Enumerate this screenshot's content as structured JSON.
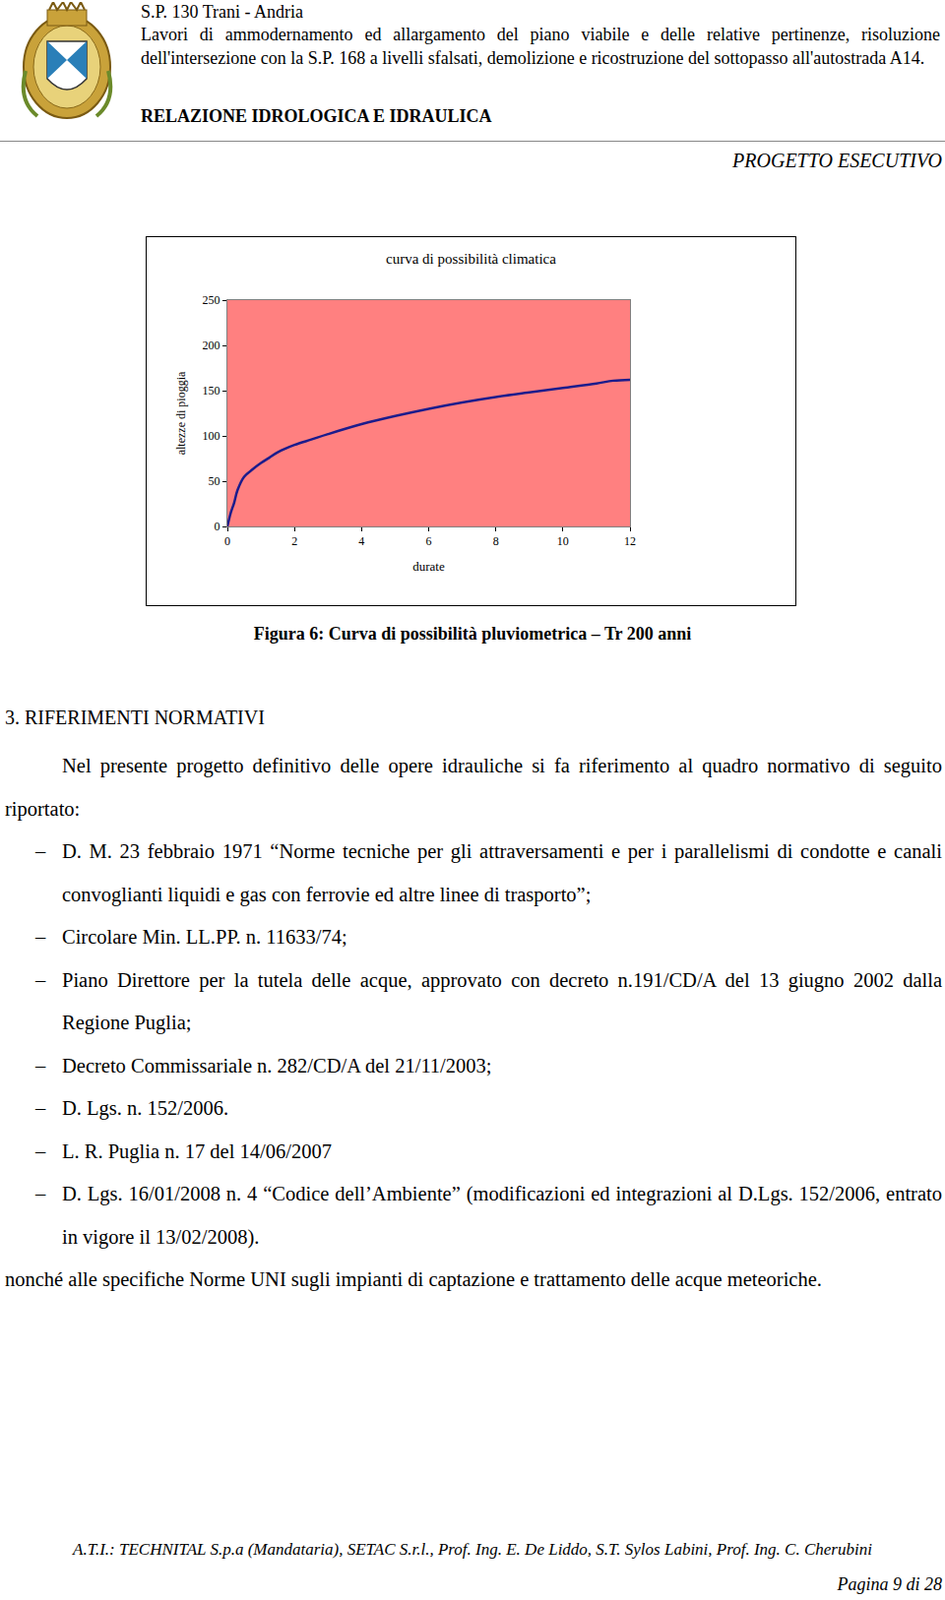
{
  "header": {
    "road": "S.P. 130 Trani - Andria",
    "works": "Lavori di ammodernamento ed allargamento del piano viabile e delle relative pertinenze, risoluzione dell'intersezione con la S.P. 168 a livelli sfalsati, demolizione e ricostruzione del sottopasso all'autostrada A14.",
    "report_title": "RELAZIONE IDROLOGICA E IDRAULICA",
    "phase": "PROGETTO ESECUTIVO"
  },
  "chart_data": {
    "type": "line",
    "title": "curva di possibilità climatica",
    "x_label": "durate",
    "y_label": "altezze di pioggia",
    "x": [
      0,
      0.1,
      0.2,
      0.3,
      0.5,
      0.75,
      1,
      1.25,
      1.5,
      2,
      2.5,
      3,
      4,
      5,
      6,
      7,
      8,
      9,
      10,
      11,
      11.5,
      12
    ],
    "values": [
      0,
      15,
      26,
      40,
      55,
      63,
      70,
      76,
      82,
      90,
      96,
      102,
      113,
      122,
      130,
      137,
      143,
      148,
      153,
      158,
      161,
      162
    ],
    "color": "#1c1c8c",
    "xlim": [
      0,
      12
    ],
    "xticks": [
      0,
      2,
      4,
      6,
      8,
      10,
      12
    ],
    "ylim": [
      0,
      250
    ],
    "yticks": [
      0,
      50,
      100,
      150,
      200,
      250
    ],
    "grid": false
  },
  "figure_caption": "Figura 6: Curva di possibilità pluviometrica – Tr 200 anni",
  "section": {
    "title": "3. RIFERIMENTI NORMATIVI",
    "intro": "Nel presente progetto definitivo delle opere idrauliche si fa riferimento al quadro normativo di seguito riportato:",
    "items": [
      "D. M. 23 febbraio 1971 “Norme tecniche per gli attraversamenti e per i parallelismi di condotte e canali convoglianti liquidi e gas con ferrovie ed altre linee di trasporto”;",
      "Circolare Min. LL.PP. n. 11633/74;",
      "Piano Direttore per la tutela delle acque, approvato con decreto n.191/CD/A del 13 giugno 2002 dalla Regione Puglia;",
      "Decreto Commissariale n. 282/CD/A del 21/11/2003;",
      "D. Lgs. n. 152/2006.",
      "L. R. Puglia n. 17 del 14/06/2007",
      "D. Lgs. 16/01/2008 n. 4 “Codice dell’Ambiente” (modificazioni ed integrazioni al D.Lgs. 152/2006, entrato in vigore il 13/02/2008)."
    ],
    "closing": "nonché alle specifiche Norme UNI sugli impianti di captazione e trattamento delle acque meteoriche."
  },
  "footer": {
    "credits": "A.T.I.: TECHNITAL S.p.a (Mandataria), SETAC S.r.l., Prof. Ing. E. De Liddo, S.T. Sylos Labini, Prof. Ing. C. Cherubini",
    "page": "Pagina 9 di 28"
  }
}
